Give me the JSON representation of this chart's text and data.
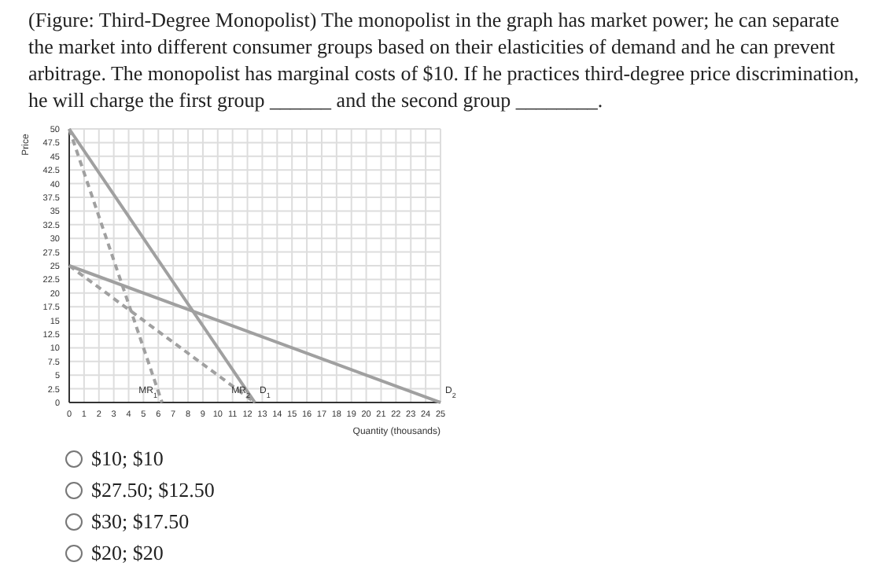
{
  "chart_data": {
    "type": "line",
    "title": "(Figure: Third-Degree Monopolist) The monopolist in the graph has market power; he can separate the market into different consumer groups based on their elasticities of demand and he can prevent arbitrage. The monopolist has marginal costs of $10. If he practices third-degree price discrimination, he will charge the first group ______ and the second group ________.",
    "xlabel": "Quantity (thousands)",
    "ylabel": "Price",
    "xlim": [
      0,
      25
    ],
    "ylim": [
      0,
      50
    ],
    "xticks": [
      0,
      1,
      2,
      3,
      4,
      5,
      6,
      7,
      8,
      9,
      10,
      11,
      12,
      13,
      14,
      15,
      16,
      17,
      18,
      19,
      20,
      21,
      22,
      23,
      24,
      25
    ],
    "yticks": [
      0,
      2.5,
      5,
      7.5,
      10,
      12.5,
      15,
      17.5,
      20,
      22.5,
      25,
      27.5,
      30,
      32.5,
      35,
      37.5,
      40,
      42.5,
      45,
      47.5,
      50
    ],
    "grid": true,
    "legend": false,
    "series": [
      {
        "name": "D$_{1}$",
        "color": "#a0a0a0",
        "line_style": "solid",
        "x": [
          0,
          12.5
        ],
        "values": [
          50,
          0
        ]
      },
      {
        "name": "D$_{2}$",
        "color": "#a0a0a0",
        "line_style": "solid",
        "x": [
          0,
          25
        ],
        "values": [
          25,
          0
        ]
      },
      {
        "name": "MR$_{1}$",
        "color": "#a0a0a0",
        "line_style": "dashed",
        "x": [
          0,
          6.25
        ],
        "values": [
          50,
          0
        ]
      },
      {
        "name": "MR$_{2}$",
        "color": "#a0a0a0",
        "line_style": "dashed",
        "x": [
          0,
          12.5
        ],
        "values": [
          25,
          0
        ]
      }
    ],
    "annotations": [
      "$10; $10",
      "$27.50; $12.50",
      "$30; $17.50",
      "$20; $20"
    ]
  }
}
